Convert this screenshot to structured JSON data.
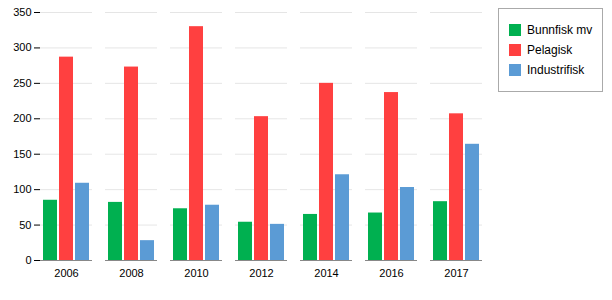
{
  "chart_data": {
    "type": "bar",
    "categories": [
      "2006",
      "2008",
      "2010",
      "2012",
      "2014",
      "2016",
      "2017"
    ],
    "series": [
      {
        "name": "Bunnfisk mv",
        "color": "#00B050",
        "values": [
          85,
          82,
          73,
          54,
          65,
          67,
          83
        ]
      },
      {
        "name": "Pelagisk",
        "color": "#FF4040",
        "values": [
          287,
          273,
          330,
          203,
          250,
          237,
          207
        ]
      },
      {
        "name": "Industrifisk",
        "color": "#5B9BD5",
        "values": [
          109,
          28,
          78,
          51,
          121,
          103,
          164
        ]
      }
    ],
    "ylim": [
      0,
      350
    ],
    "yticks": [
      0,
      50,
      100,
      150,
      200,
      250,
      300,
      350
    ],
    "grid": true,
    "legend": "right"
  }
}
